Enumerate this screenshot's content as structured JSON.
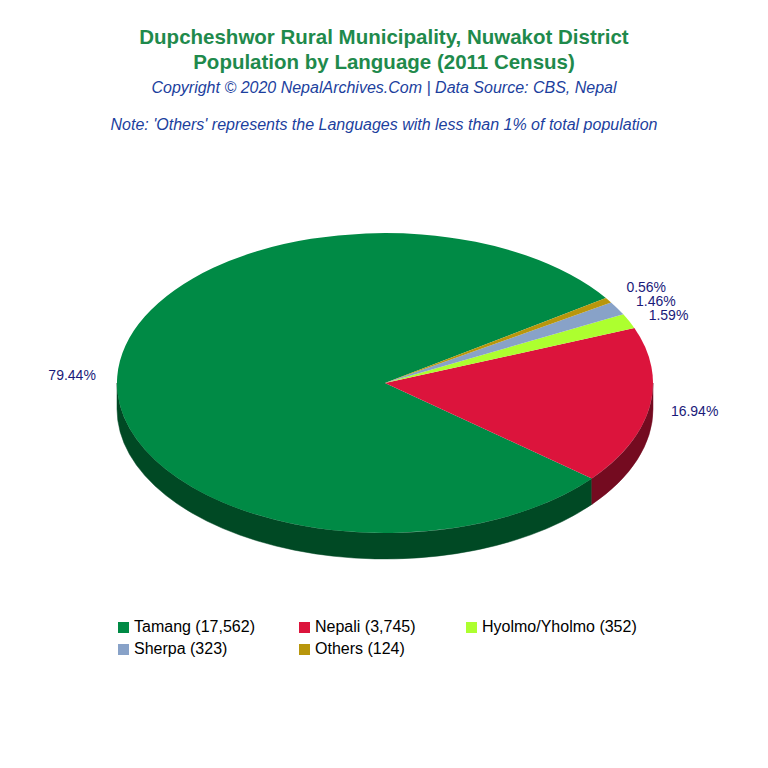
{
  "chart_data": {
    "type": "pie",
    "title": "Dupcheshwor Rural Municipality, Nuwakot District",
    "subtitle": "Population by Language (2011 Census)",
    "annotations": [
      "Copyright © 2020 NepalArchives.Com | Data Source: CBS, Nepal",
      "Note: 'Others' represents the Languages with less than 1% of total population"
    ],
    "categories": [
      "Tamang (17,562)",
      "Nepali (3,745)",
      "Hyolmo/Yholmo (352)",
      "Sherpa (323)",
      "Others (124)"
    ],
    "values": [
      79.44,
      16.94,
      1.59,
      1.46,
      0.56
    ],
    "value_labels": [
      "79.44%",
      "16.94%",
      "1.59%",
      "1.46%",
      "0.56%"
    ],
    "colors": [
      "#008a45",
      "#dc143c",
      "#adff2f",
      "#88a2c8",
      "#b8960c"
    ],
    "data_labels": true,
    "legend": "bottom"
  }
}
